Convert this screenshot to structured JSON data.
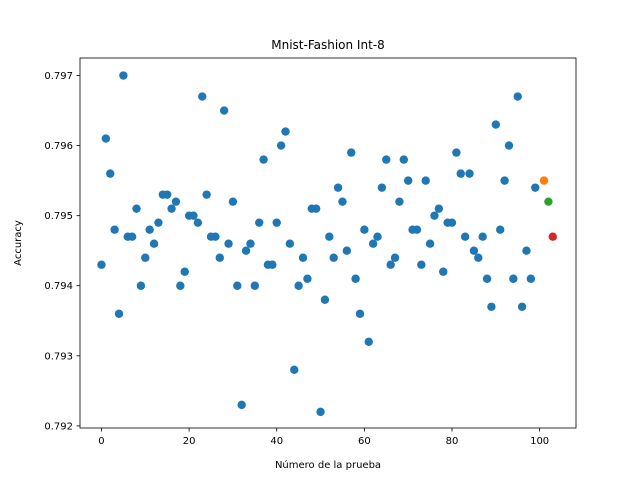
{
  "chart_data": {
    "type": "scatter",
    "title": "Mnist-Fashion Int-8",
    "xlabel": "Número de la prueba",
    "ylabel": "Accuracy",
    "xlim": [
      -4.9,
      108.3
    ],
    "ylim": [
      0.79197,
      0.79725
    ],
    "xticks": [
      0,
      20,
      40,
      60,
      80,
      100
    ],
    "xtick_labels": [
      "0",
      "20",
      "40",
      "60",
      "80",
      "100"
    ],
    "yticks": [
      0.792,
      0.793,
      0.794,
      0.795,
      0.796,
      0.797
    ],
    "ytick_labels": [
      "0.792",
      "0.793",
      "0.794",
      "0.795",
      "0.796",
      "0.797"
    ],
    "grid": false,
    "series": [
      {
        "color": "#1f77b4",
        "points": [
          [
            0,
            0.7943
          ],
          [
            1,
            0.7961
          ],
          [
            2,
            0.7956
          ],
          [
            3,
            0.7948
          ],
          [
            4,
            0.7936
          ],
          [
            5,
            0.797
          ],
          [
            6,
            0.7947
          ],
          [
            7,
            0.7947
          ],
          [
            8,
            0.7951
          ],
          [
            9,
            0.794
          ],
          [
            10,
            0.7944
          ],
          [
            11,
            0.7948
          ],
          [
            12,
            0.7946
          ],
          [
            13,
            0.7949
          ],
          [
            14,
            0.7953
          ],
          [
            15,
            0.7953
          ],
          [
            16,
            0.7951
          ],
          [
            17,
            0.7952
          ],
          [
            18,
            0.794
          ],
          [
            19,
            0.7942
          ],
          [
            20,
            0.795
          ],
          [
            21,
            0.795
          ],
          [
            22,
            0.7949
          ],
          [
            23,
            0.7967
          ],
          [
            24,
            0.7953
          ],
          [
            25,
            0.7947
          ],
          [
            26,
            0.7947
          ],
          [
            27,
            0.7944
          ],
          [
            28,
            0.7965
          ],
          [
            29,
            0.7946
          ],
          [
            30,
            0.7952
          ],
          [
            31,
            0.794
          ],
          [
            32,
            0.7923
          ],
          [
            33,
            0.7945
          ],
          [
            34,
            0.7946
          ],
          [
            35,
            0.794
          ],
          [
            36,
            0.7949
          ],
          [
            37,
            0.7958
          ],
          [
            38,
            0.7943
          ],
          [
            39,
            0.7943
          ],
          [
            40,
            0.7949
          ],
          [
            41,
            0.796
          ],
          [
            42,
            0.7962
          ],
          [
            43,
            0.7946
          ],
          [
            44,
            0.7928
          ],
          [
            45,
            0.794
          ],
          [
            46,
            0.7944
          ],
          [
            47,
            0.7941
          ],
          [
            48,
            0.7951
          ],
          [
            49,
            0.7951
          ],
          [
            50,
            0.7922
          ],
          [
            51,
            0.7938
          ],
          [
            52,
            0.7947
          ],
          [
            53,
            0.7944
          ],
          [
            54,
            0.7954
          ],
          [
            55,
            0.7952
          ],
          [
            56,
            0.7945
          ],
          [
            57,
            0.7959
          ],
          [
            58,
            0.7941
          ],
          [
            59,
            0.7936
          ],
          [
            60,
            0.7948
          ],
          [
            61,
            0.7932
          ],
          [
            62,
            0.7946
          ],
          [
            63,
            0.7947
          ],
          [
            64,
            0.7954
          ],
          [
            65,
            0.7958
          ],
          [
            66,
            0.7943
          ],
          [
            67,
            0.7944
          ],
          [
            68,
            0.7952
          ],
          [
            69,
            0.7958
          ],
          [
            70,
            0.7955
          ],
          [
            71,
            0.7948
          ],
          [
            72,
            0.7948
          ],
          [
            73,
            0.7943
          ],
          [
            74,
            0.7955
          ],
          [
            75,
            0.7946
          ],
          [
            76,
            0.795
          ],
          [
            77,
            0.7951
          ],
          [
            78,
            0.7942
          ],
          [
            79,
            0.7949
          ],
          [
            80,
            0.7949
          ],
          [
            81,
            0.7959
          ],
          [
            82,
            0.7956
          ],
          [
            83,
            0.7947
          ],
          [
            84,
            0.7956
          ],
          [
            85,
            0.7945
          ],
          [
            86,
            0.7944
          ],
          [
            87,
            0.7947
          ],
          [
            88,
            0.7941
          ],
          [
            89,
            0.7937
          ],
          [
            90,
            0.7963
          ],
          [
            91,
            0.7948
          ],
          [
            92,
            0.7955
          ],
          [
            93,
            0.796
          ],
          [
            94,
            0.7941
          ],
          [
            95,
            0.7967
          ],
          [
            96,
            0.7937
          ],
          [
            97,
            0.7945
          ],
          [
            98,
            0.7941
          ],
          [
            99,
            0.7954
          ]
        ]
      },
      {
        "color": "#ff7f0e",
        "points": [
          [
            101,
            0.7955
          ]
        ]
      },
      {
        "color": "#2ca02c",
        "points": [
          [
            102,
            0.7952
          ]
        ]
      },
      {
        "color": "#d62728",
        "points": [
          [
            103,
            0.7947
          ]
        ]
      }
    ]
  }
}
